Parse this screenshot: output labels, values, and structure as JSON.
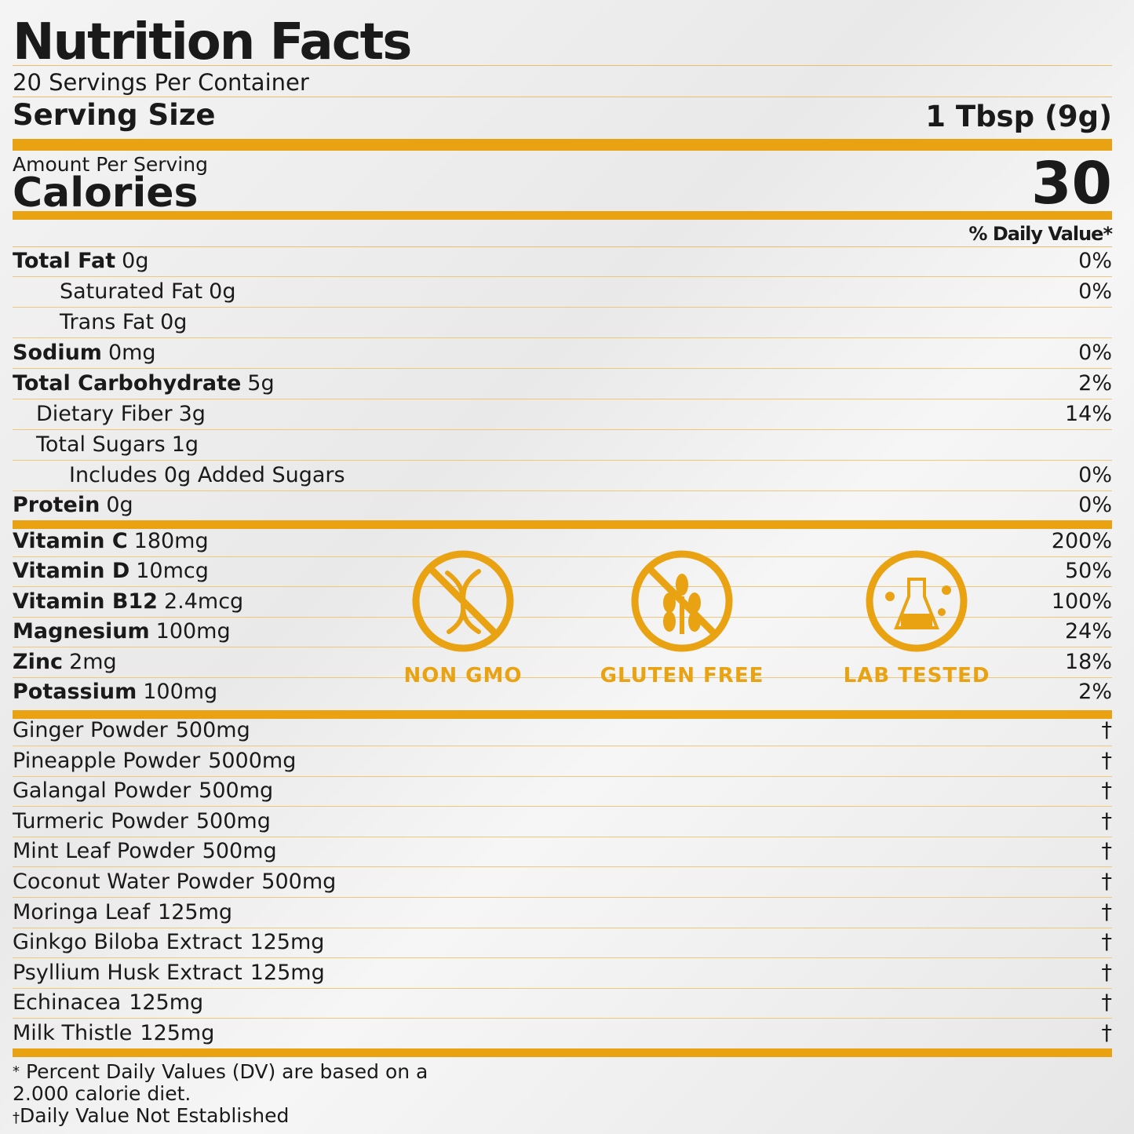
{
  "title": "Nutrition Facts",
  "servings": "20 Servings Per Container",
  "serving_size": {
    "label": "Serving Size",
    "value": "1 Tbsp (9g)"
  },
  "amount_per_serving": "Amount Per Serving",
  "calories": {
    "label": "Calories",
    "value": "30"
  },
  "dv_header": "% Daily Value*",
  "nutrients": [
    {
      "name": "Total Fat",
      "amount": "0g",
      "dv": "0%"
    },
    {
      "name": "Saturated Fat",
      "amount": "0g",
      "dv": "0%"
    },
    {
      "name": "Trans Fat",
      "amount": "0g"
    },
    {
      "name": "Sodium",
      "amount": "0mg",
      "dv": "0%"
    },
    {
      "name": "Total Carbohydrate",
      "amount": "5g",
      "dv": "2%"
    },
    {
      "name": "Dietary Fiber",
      "amount": "3g",
      "dv": "14%"
    },
    {
      "name": "Total Sugars",
      "amount": "1g"
    },
    {
      "name": "Includes 0g Added Sugars",
      "dv": "0%"
    },
    {
      "name": "Protein",
      "amount": "0g",
      "dv": "0%"
    }
  ],
  "vitamins": [
    {
      "name": "Vitamin C",
      "amount": "180mg",
      "dv": "200%"
    },
    {
      "name": "Vitamin D",
      "amount": "10mcg",
      "dv": "50%"
    },
    {
      "name": "Vitamin B12",
      "amount": "2.4mcg",
      "dv": "100%"
    },
    {
      "name": "Magnesium",
      "amount": "100mg",
      "dv": "24%"
    },
    {
      "name": "Zinc",
      "amount": "2mg",
      "dv": "18%"
    },
    {
      "name": "Potassium",
      "amount": "100mg",
      "dv": "2%"
    }
  ],
  "badges": [
    "NON GMO",
    "GLUTEN FREE",
    "LAB TESTED"
  ],
  "ingredients": [
    {
      "name": "Ginger Powder",
      "amount": "500mg",
      "dv": "†"
    },
    {
      "name": "Pineapple Powder",
      "amount": "5000mg",
      "dv": "†"
    },
    {
      "name": "Galangal Powder",
      "amount": "500mg",
      "dv": "†"
    },
    {
      "name": "Turmeric Powder",
      "amount": "500mg",
      "dv": "†"
    },
    {
      "name": "Mint Leaf Powder",
      "amount": "500mg",
      "dv": "†"
    },
    {
      "name": "Coconut Water Powder",
      "amount": "500mg",
      "dv": "†"
    },
    {
      "name": "Moringa Leaf",
      "amount": "125mg",
      "dv": "†"
    },
    {
      "name": "Ginkgo Biloba Extract",
      "amount": "125mg",
      "dv": "†"
    },
    {
      "name": "Psyllium Husk Extract",
      "amount": "125mg",
      "dv": "†"
    },
    {
      "name": "Echinacea",
      "amount": "125mg",
      "dv": "†"
    },
    {
      "name": "Milk Thistle",
      "amount": "125mg",
      "dv": "†"
    }
  ],
  "footnotes": [
    {
      "mark": "*",
      "text": "Percent Daily Values (DV) are based on a 2.000 calorie diet."
    },
    {
      "mark": "†",
      "text": "Daily Value Not Established"
    }
  ]
}
